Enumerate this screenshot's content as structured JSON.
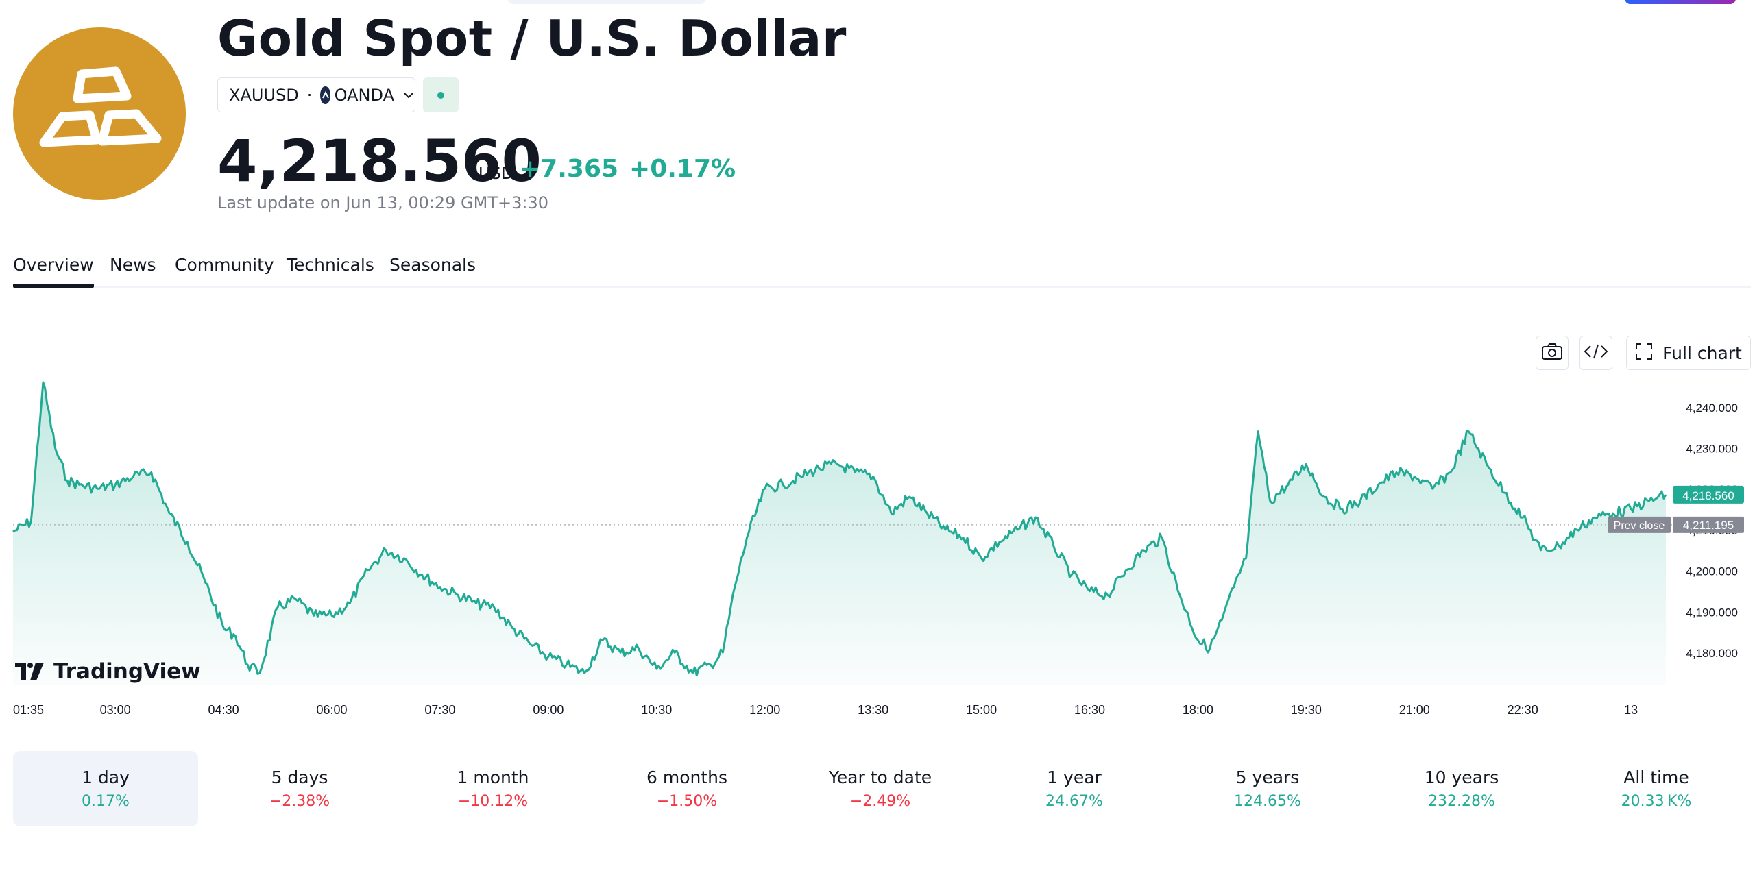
{
  "header": {
    "title": "Gold Spot / U.S. Dollar",
    "symbol": "XAUUSD",
    "separator": "·",
    "exchange": "OANDA",
    "price": "4,218.560",
    "currency": "USD",
    "change_abs": "+7.365",
    "change_pct": "+0.17%",
    "last_update": "Last update on Jun 13, 00:29 GMT+3:30",
    "logo_icon": "gold-bars-icon"
  },
  "tabs": [
    {
      "label": "Overview",
      "active": true
    },
    {
      "label": "News"
    },
    {
      "label": "Community"
    },
    {
      "label": "Technicals"
    },
    {
      "label": "Seasonals"
    }
  ],
  "chart_tools": {
    "snapshot_icon": "camera-icon",
    "embed_icon": "code-icon",
    "full_chart_label": "Full chart"
  },
  "branding": "TradingView",
  "chart_data": {
    "type": "area",
    "x_ticks": [
      "01:35",
      "03:00",
      "04:30",
      "06:00",
      "07:30",
      "09:00",
      "10:30",
      "12:00",
      "13:30",
      "15:00",
      "16:30",
      "18:00",
      "19:30",
      "21:00",
      "22:30",
      "13"
    ],
    "y_ticks": [
      "4,180.000",
      "4,190.000",
      "4,200.000",
      "4,210.000",
      "4,220.000",
      "4,230.000",
      "4,240.000"
    ],
    "ylim": [
      4172,
      4249
    ],
    "current_price_label": "4,218.560",
    "current_price": 4218.56,
    "prev_close_text": "Prev close",
    "prev_close_label": "4,211.195",
    "prev_close": 4211.195,
    "series": [
      {
        "color": "#22ab94",
        "x": [
          "01:35",
          "01:50",
          "02:00",
          "02:10",
          "02:20",
          "02:30",
          "02:45",
          "03:00",
          "03:15",
          "03:30",
          "03:45",
          "04:00",
          "04:15",
          "04:30",
          "04:40",
          "04:50",
          "05:00",
          "05:15",
          "05:30",
          "05:45",
          "06:00",
          "06:15",
          "06:30",
          "06:45",
          "07:00",
          "07:15",
          "07:30",
          "07:45",
          "08:00",
          "08:15",
          "08:30",
          "08:45",
          "09:00",
          "09:15",
          "09:30",
          "09:45",
          "10:00",
          "10:15",
          "10:30",
          "10:45",
          "11:00",
          "11:15",
          "11:25",
          "11:35",
          "11:45",
          "12:00",
          "12:15",
          "12:30",
          "12:45",
          "13:00",
          "13:15",
          "13:30",
          "13:45",
          "14:00",
          "14:15",
          "14:30",
          "14:45",
          "15:00",
          "15:15",
          "15:30",
          "15:45",
          "16:00",
          "16:15",
          "16:30",
          "16:45",
          "17:00",
          "17:15",
          "17:30",
          "17:45",
          "18:00",
          "18:10",
          "18:20",
          "18:30",
          "18:40",
          "18:50",
          "19:00",
          "19:15",
          "19:30",
          "19:45",
          "20:00",
          "20:15",
          "20:30",
          "20:45",
          "21:00",
          "21:15",
          "21:30",
          "21:45",
          "22:00",
          "22:15",
          "22:30",
          "22:45",
          "23:00",
          "23:15",
          "23:30",
          "23:45",
          "00:00",
          "00:15",
          "00:29"
        ],
        "values": [
          4209.5,
          4212,
          4246,
          4230,
          4222,
          4221,
          4220,
          4221,
          4223,
          4224,
          4214,
          4207,
          4197,
          4186,
          4184,
          4177,
          4175,
          4191,
          4193,
          4189,
          4189,
          4192,
          4200,
          4205,
          4203,
          4199,
          4196,
          4194,
          4192,
          4191,
          4186,
          4182,
          4179,
          4177,
          4175,
          4183,
          4180,
          4181,
          4176,
          4180,
          4175,
          4177,
          4180,
          4196,
          4208,
          4220,
          4221,
          4223,
          4225,
          4226,
          4224,
          4223,
          4214,
          4218,
          4214,
          4210,
          4208,
          4203,
          4207,
          4210,
          4213,
          4206,
          4199,
          4195,
          4194,
          4200,
          4205,
          4208,
          4194,
          4183,
          4181,
          4188,
          4196,
          4203,
          4234,
          4217,
          4221,
          4226,
          4218,
          4215,
          4217,
          4221,
          4224,
          4223,
          4220,
          4224,
          4234,
          4226,
          4219,
          4213,
          4205,
          4206,
          4210,
          4213,
          4214,
          4215,
          4217,
          4218.56
        ]
      }
    ]
  },
  "periods": [
    {
      "label": "1 day",
      "value": "0.17%",
      "sign": "pos",
      "active": true
    },
    {
      "label": "5 days",
      "value": "−2.38%",
      "sign": "neg"
    },
    {
      "label": "1 month",
      "value": "−10.12%",
      "sign": "neg"
    },
    {
      "label": "6 months",
      "value": "−1.50%",
      "sign": "neg"
    },
    {
      "label": "Year to date",
      "value": "−2.49%",
      "sign": "neg"
    },
    {
      "label": "1 year",
      "value": "24.67%",
      "sign": "pos"
    },
    {
      "label": "5 years",
      "value": "124.65%",
      "sign": "pos"
    },
    {
      "label": "10 years",
      "value": "232.28%",
      "sign": "pos"
    },
    {
      "label": "All time",
      "value": "20.33 K%",
      "sign": "pos"
    }
  ]
}
